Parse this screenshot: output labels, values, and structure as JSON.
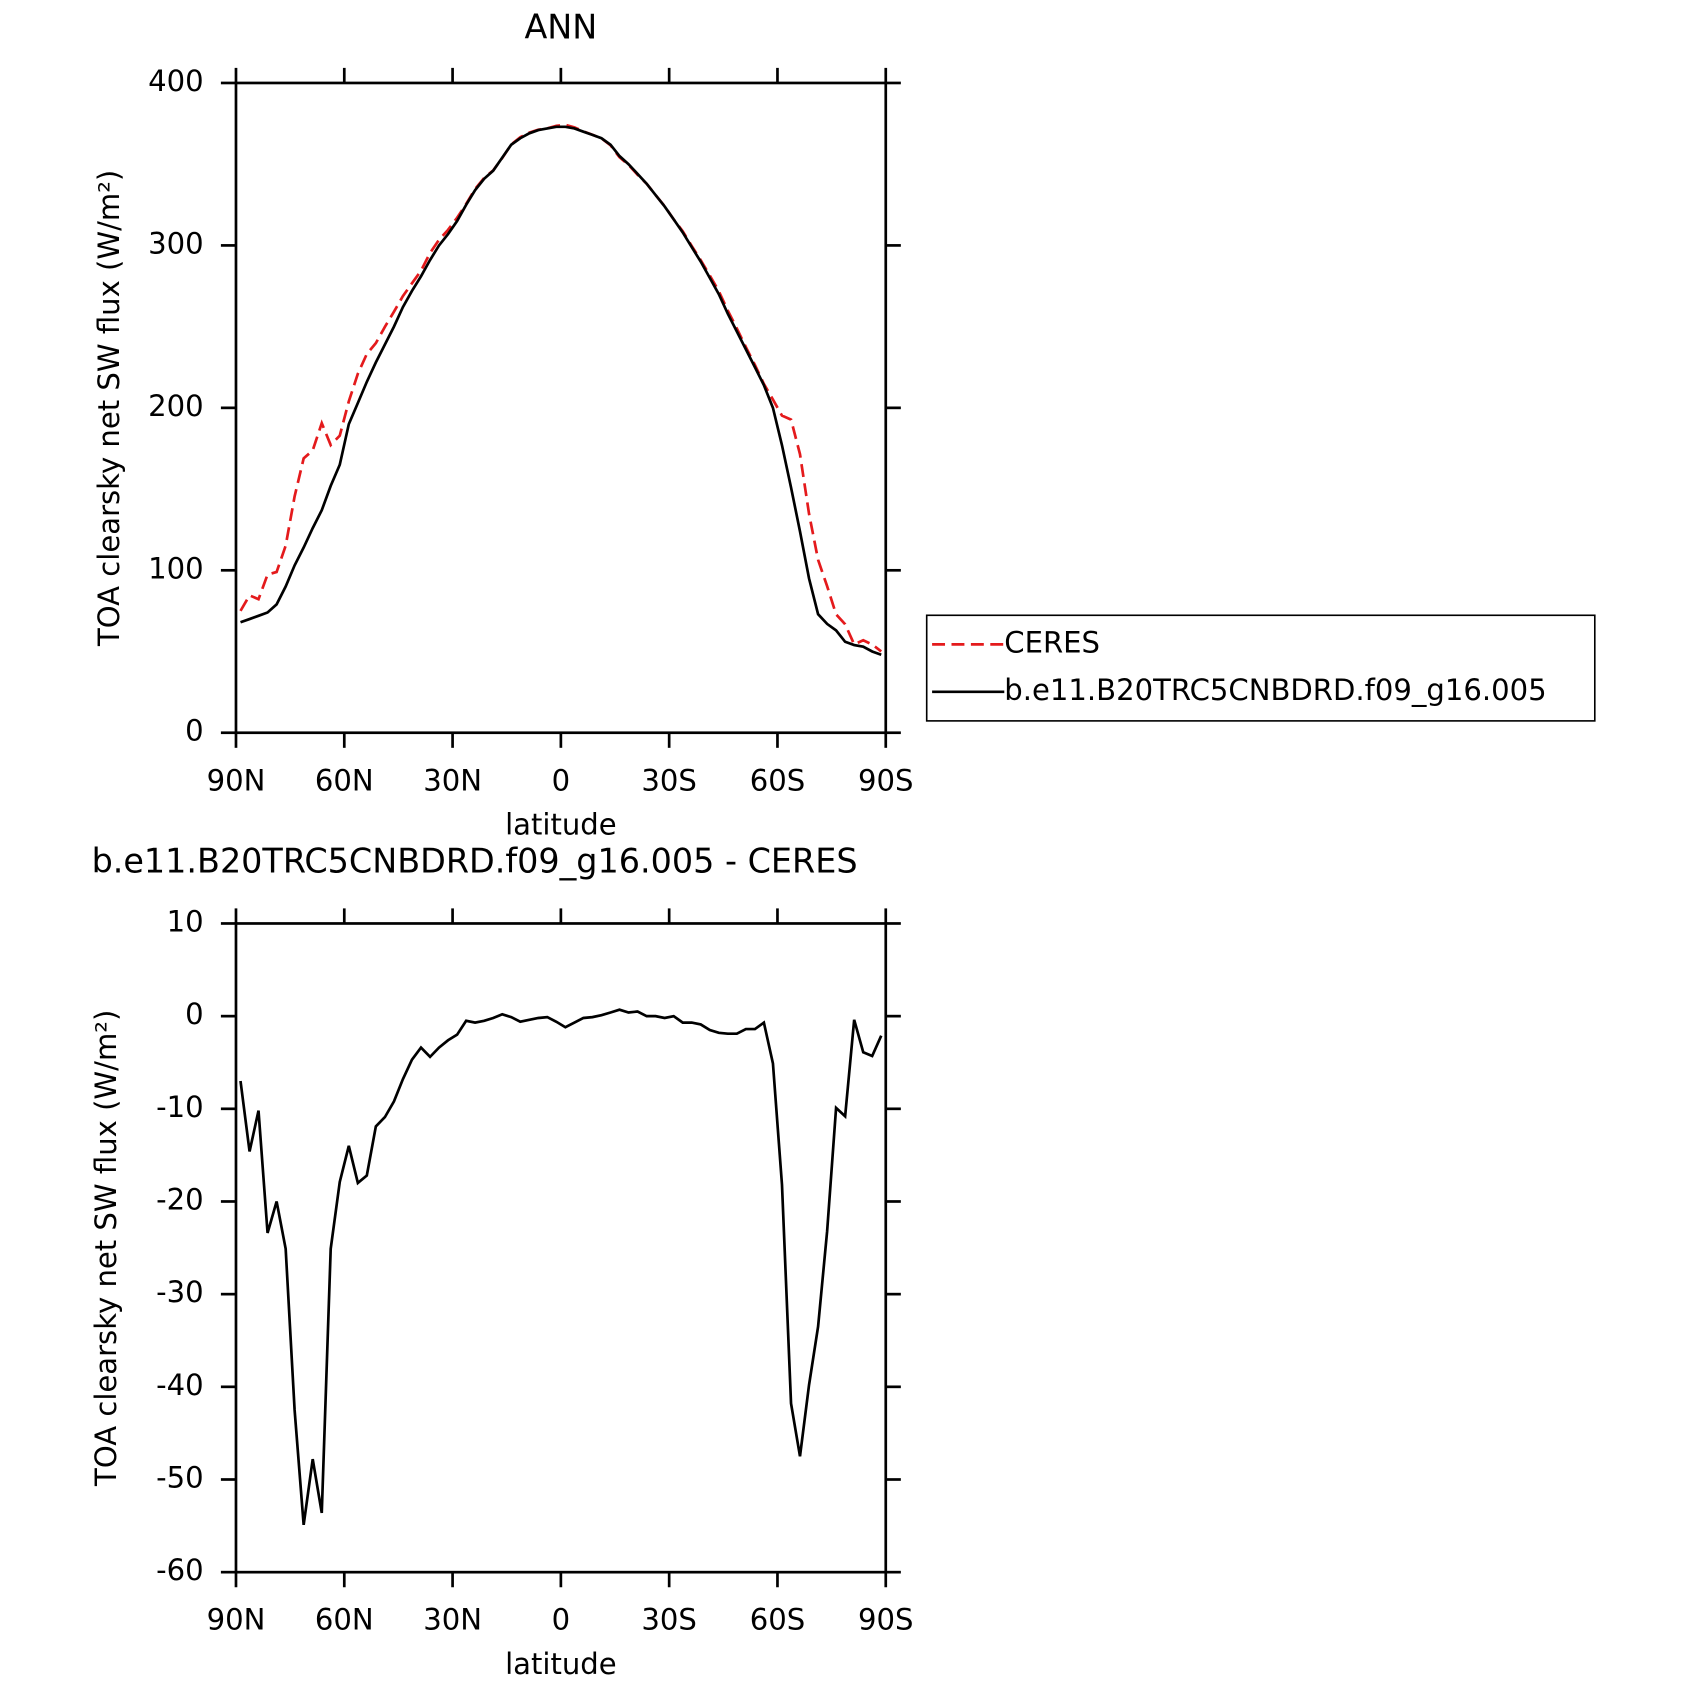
{
  "chart_data": [
    {
      "type": "line",
      "title": "ANN",
      "xlabel": "latitude",
      "ylabel": "TOA clearsky net SW flux (W/m²)",
      "x": [
        88.75,
        86.25,
        83.75,
        81.25,
        78.75,
        76.25,
        73.75,
        71.25,
        68.75,
        66.25,
        63.75,
        61.25,
        58.75,
        56.25,
        53.75,
        51.25,
        48.75,
        46.25,
        43.75,
        41.25,
        38.75,
        36.25,
        33.75,
        31.25,
        28.75,
        26.25,
        23.75,
        21.25,
        18.75,
        16.25,
        13.75,
        11.25,
        8.75,
        6.25,
        3.75,
        1.25,
        -1.25,
        -3.75,
        -6.25,
        -8.75,
        -11.25,
        -13.75,
        -16.25,
        -18.75,
        -21.25,
        -23.75,
        -26.25,
        -28.75,
        -31.25,
        -33.75,
        -36.25,
        -38.75,
        -41.25,
        -43.75,
        -46.25,
        -48.75,
        -51.25,
        -53.75,
        -56.25,
        -58.75,
        -61.25,
        -63.75,
        -66.25,
        -68.75,
        -71.25,
        -73.75,
        -76.25,
        -78.75,
        -81.25,
        -83.75,
        -86.25,
        -88.75
      ],
      "series": [
        {
          "name": "CERES",
          "color": "#e41a1c",
          "line_style": "dashed",
          "values": [
            75,
            84.6,
            82.2,
            97.4,
            99,
            115.1,
            145.5,
            168.9,
            173.8,
            190.6,
            177.1,
            182.9,
            204,
            221,
            233.2,
            239.9,
            249.9,
            259.2,
            268.8,
            276.7,
            284.4,
            295.4,
            303.4,
            309.6,
            317,
            325.5,
            334.7,
            341.5,
            346.2,
            353.8,
            362.1,
            366.6,
            369.4,
            371.2,
            372.1,
            373.6,
            374.2,
            372.7,
            370.2,
            368.1,
            365.9,
            361.6,
            354.3,
            349.6,
            343.5,
            338,
            331,
            324.2,
            316,
            308.7,
            299.7,
            290.9,
            281.5,
            271.8,
            259.9,
            248.9,
            237.4,
            226.4,
            214.7,
            205.1,
            195.2,
            192.8,
            171.5,
            134.8,
            106.5,
            90.2,
            72.9,
            66.8,
            54.4,
            56.9,
            54.3,
            50.1
          ]
        },
        {
          "name": "b.e11.B20TRC5CNBDRD.f09_g16.005",
          "color": "#000000",
          "line_style": "solid",
          "values": [
            68,
            70,
            72,
            74,
            79,
            90,
            103,
            114,
            126,
            137,
            152,
            165,
            190,
            203,
            216,
            228,
            239,
            250,
            262,
            272,
            281,
            291,
            300,
            307,
            315,
            325,
            334,
            341,
            346,
            354,
            362,
            366,
            369,
            371,
            372,
            373,
            373,
            372,
            370,
            368,
            366,
            362,
            355,
            350,
            344,
            338,
            331,
            324,
            316,
            308,
            299,
            290,
            280,
            270,
            258,
            247,
            236,
            225,
            214,
            200,
            177,
            151,
            124,
            95,
            73,
            67,
            63,
            56,
            54,
            53,
            50,
            48
          ]
        }
      ],
      "xlim": [
        90,
        -90
      ],
      "xticks": [
        {
          "value": 90,
          "label": "90N"
        },
        {
          "value": 60,
          "label": "60N"
        },
        {
          "value": 30,
          "label": "30N"
        },
        0,
        {
          "value": -30,
          "label": "30S"
        },
        {
          "value": -60,
          "label": "60S"
        },
        {
          "value": -90,
          "label": "90S"
        }
      ],
      "ylim": [
        0,
        400
      ],
      "yticks": [
        0,
        100,
        200,
        300,
        400
      ],
      "legend": "right"
    },
    {
      "type": "line",
      "title": "b.e11.B20TRC5CNBDRD.f09_g16.005 - CERES",
      "xlabel": "latitude",
      "ylabel": "TOA clearsky net SW flux (W/m²)",
      "x": [
        88.75,
        86.25,
        83.75,
        81.25,
        78.75,
        76.25,
        73.75,
        71.25,
        68.75,
        66.25,
        63.75,
        61.25,
        58.75,
        56.25,
        53.75,
        51.25,
        48.75,
        46.25,
        43.75,
        41.25,
        38.75,
        36.25,
        33.75,
        31.25,
        28.75,
        26.25,
        23.75,
        21.25,
        18.75,
        16.25,
        13.75,
        11.25,
        8.75,
        6.25,
        3.75,
        1.25,
        -1.25,
        -3.75,
        -6.25,
        -8.75,
        -11.25,
        -13.75,
        -16.25,
        -18.75,
        -21.25,
        -23.75,
        -26.25,
        -28.75,
        -31.25,
        -33.75,
        -36.25,
        -38.75,
        -41.25,
        -43.75,
        -46.25,
        -48.75,
        -51.25,
        -53.75,
        -56.25,
        -58.75,
        -61.25,
        -63.75,
        -66.25,
        -68.75,
        -71.25,
        -73.75,
        -76.25,
        -78.75,
        -81.25,
        -83.75,
        -86.25,
        -88.75
      ],
      "values": [
        -7,
        -14.6,
        -10.2,
        -23.4,
        -20,
        -25.1,
        -42.5,
        -54.9,
        -47.8,
        -53.6,
        -25.1,
        -17.9,
        -14,
        -18,
        -17.2,
        -11.9,
        -10.9,
        -9.2,
        -6.8,
        -4.7,
        -3.4,
        -4.4,
        -3.4,
        -2.6,
        -2,
        -0.5,
        -0.7,
        -0.5,
        -0.2,
        0.2,
        -0.1,
        -0.6,
        -0.4,
        -0.2,
        -0.1,
        -0.6,
        -1.2,
        -0.7,
        -0.2,
        -0.1,
        0.1,
        0.4,
        0.7,
        0.4,
        0.5,
        0,
        0,
        -0.2,
        0,
        -0.7,
        -0.7,
        -0.9,
        -1.5,
        -1.8,
        -1.9,
        -1.9,
        -1.4,
        -1.4,
        -0.7,
        -5.1,
        -18.2,
        -41.8,
        -47.5,
        -39.8,
        -33.5,
        -23.2,
        -9.9,
        -10.8,
        -0.4,
        -3.9,
        -4.3,
        -2.1
      ],
      "color": "#000000",
      "xlim": [
        90,
        -90
      ],
      "xticks": [
        {
          "value": 90,
          "label": "90N"
        },
        {
          "value": 60,
          "label": "60N"
        },
        {
          "value": 30,
          "label": "30N"
        },
        0,
        {
          "value": -30,
          "label": "30S"
        },
        {
          "value": -60,
          "label": "60S"
        },
        {
          "value": -90,
          "label": "90S"
        }
      ],
      "ylim": [
        -60,
        10
      ],
      "yticks": [
        -60,
        -50,
        -40,
        -30,
        -20,
        -10,
        0,
        10
      ]
    }
  ]
}
